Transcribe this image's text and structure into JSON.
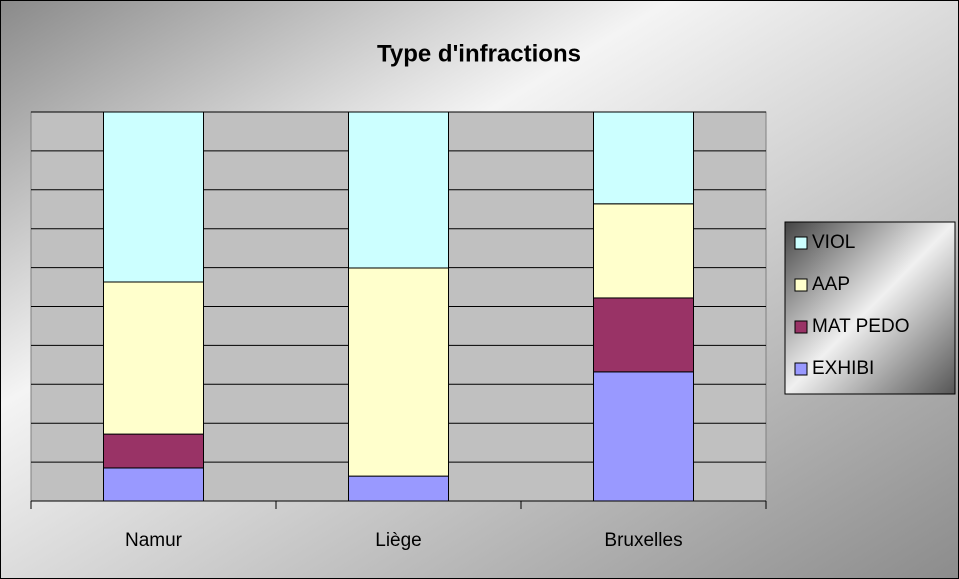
{
  "chart_data": {
    "type": "stacked_bar",
    "title": "Type d'infractions",
    "categories": [
      "Namur",
      "Liège",
      "Bruxelles"
    ],
    "series": [
      {
        "name": "EXHIBI",
        "color": "#9999ff",
        "values": [
          8.5,
          6.4,
          33.2
        ]
      },
      {
        "name": "MAT PEDO",
        "color": "#993366",
        "values": [
          8.7,
          0,
          19
        ]
      },
      {
        "name": "AAP",
        "color": "#ffffcc",
        "values": [
          39.1,
          53.5,
          24.2
        ]
      },
      {
        "name": "VIOL",
        "color": "#ccffff",
        "values": [
          43.7,
          40.1,
          23.6
        ]
      }
    ],
    "ylim": [
      0,
      100
    ],
    "yticks": [
      0,
      10,
      20,
      30,
      40,
      50,
      60,
      70,
      80,
      90,
      100
    ],
    "grid": true,
    "legend": "right"
  }
}
